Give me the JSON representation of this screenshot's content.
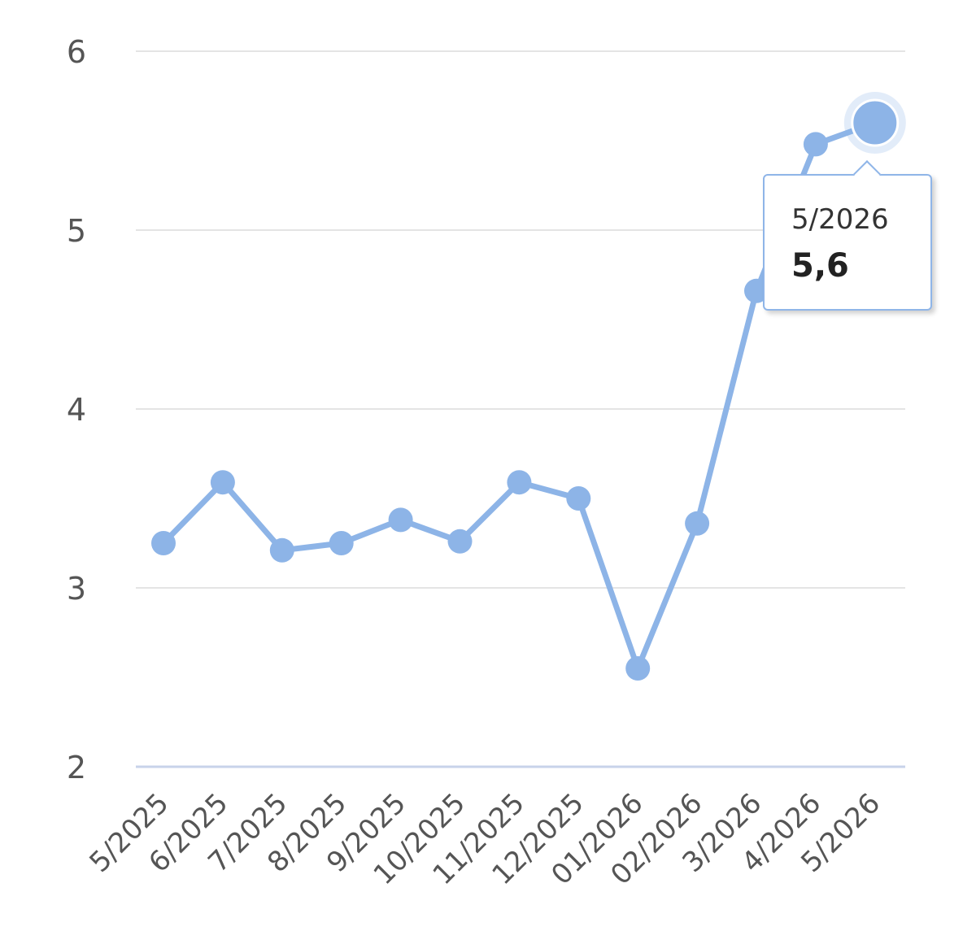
{
  "chart_data": {
    "type": "line",
    "categories": [
      "5/2025",
      "6/2025",
      "7/2025",
      "8/2025",
      "9/2025",
      "10/2025",
      "11/2025",
      "12/2025",
      "01/2026",
      "02/2026",
      "3/2026",
      "4/2026",
      "5/2026"
    ],
    "values": [
      3.25,
      3.59,
      3.21,
      3.25,
      3.38,
      3.26,
      3.59,
      3.5,
      2.55,
      3.36,
      4.66,
      5.48,
      5.6
    ],
    "ylim": [
      2,
      6
    ],
    "yticks": [
      "2",
      "3",
      "4",
      "5",
      "6"
    ],
    "grid": true,
    "line_color": "#8db4e7",
    "highlight_index": 12
  },
  "tooltip": {
    "label": "5/2026",
    "value": "5,6"
  }
}
